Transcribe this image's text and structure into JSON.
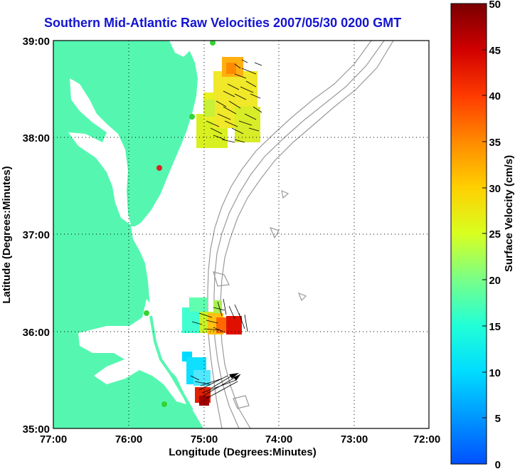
{
  "title": "Southern Mid-Atlantic Raw Velocities 2007/05/30 0200 GMT",
  "x_axis": {
    "label": "Longitude (Degrees:Minutes)",
    "ticks": [
      "77:00",
      "76:00",
      "75:00",
      "74:00",
      "73:00",
      "72:00"
    ]
  },
  "y_axis": {
    "label": "Latitude (Degrees:Minutes)",
    "ticks": [
      "39:00",
      "38:00",
      "37:00",
      "36:00",
      "35:00"
    ]
  },
  "colorbar": {
    "label": "Surface Velocity (cm/s)",
    "ticks": [
      "50",
      "45",
      "40",
      "35",
      "30",
      "25",
      "20",
      "15",
      "10",
      "5",
      "0"
    ],
    "min": 0,
    "max": 50
  },
  "colors": {
    "land": "#55f7b0",
    "title": "#1414d2",
    "bathymetry": "#9a9a9a",
    "vectors": "#000000",
    "station_green": "#33d433",
    "station_red": "#e02020"
  }
}
